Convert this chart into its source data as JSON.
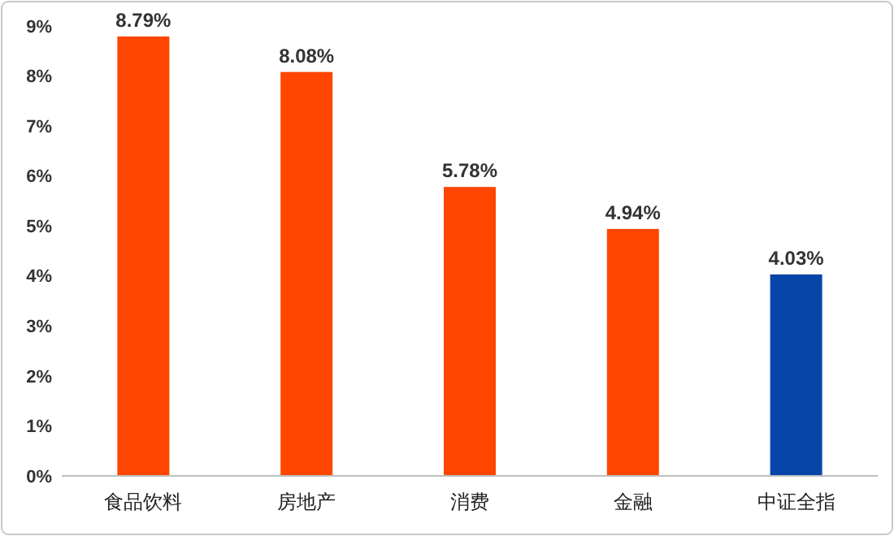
{
  "chart_data": {
    "type": "bar",
    "categories": [
      "食品饮料",
      "房地产",
      "消费",
      "金融",
      "中证全指"
    ],
    "values": [
      8.79,
      8.08,
      5.78,
      4.94,
      4.03
    ],
    "colors": [
      "#ff4500",
      "#ff4500",
      "#ff4500",
      "#ff4500",
      "#0845a8"
    ],
    "value_labels": [
      "8.79%",
      "8.08%",
      "5.78%",
      "4.94%",
      "4.03%"
    ],
    "ylim": [
      0,
      9
    ],
    "yticks": [
      {
        "value": 0,
        "label": "0%"
      },
      {
        "value": 1,
        "label": "1%"
      },
      {
        "value": 2,
        "label": "2%"
      },
      {
        "value": 3,
        "label": "3%"
      },
      {
        "value": 4,
        "label": "4%"
      },
      {
        "value": 5,
        "label": "5%"
      },
      {
        "value": 6,
        "label": "6%"
      },
      {
        "value": 7,
        "label": "7%"
      },
      {
        "value": 8,
        "label": "8%"
      },
      {
        "value": 9,
        "label": "9%"
      }
    ],
    "grid": false
  }
}
